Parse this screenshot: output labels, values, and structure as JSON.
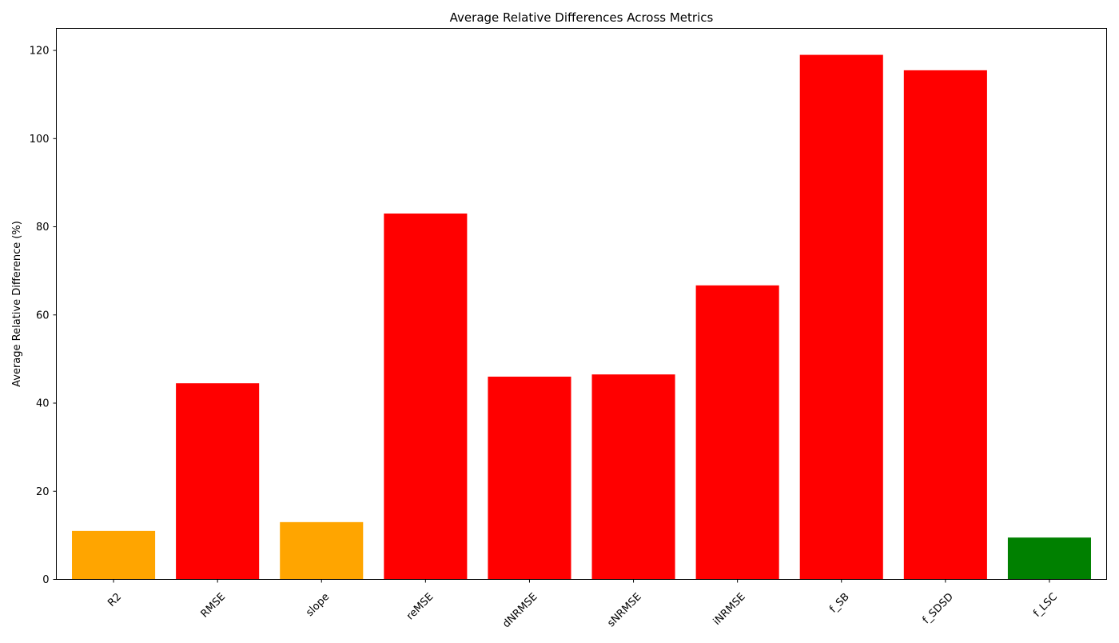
{
  "chart_data": {
    "type": "bar",
    "title": "Average Relative Differences Across Metrics",
    "xlabel": "",
    "ylabel": "Average Relative Difference (%)",
    "ylim": [
      0,
      125
    ],
    "yticks": [
      0,
      20,
      40,
      60,
      80,
      100,
      120
    ],
    "grid": false,
    "categories": [
      "R2",
      "RMSE",
      "slope",
      "reMSE",
      "dNRMSE",
      "sNRMSE",
      "iNRMSE",
      "f_SB",
      "f_SDSD",
      "f_LSC"
    ],
    "values": [
      11.0,
      44.5,
      13.0,
      83.0,
      46.0,
      46.5,
      66.7,
      119.0,
      115.5,
      9.5
    ],
    "colors": [
      "#ffa500",
      "#ff0000",
      "#ffa500",
      "#ff0000",
      "#ff0000",
      "#ff0000",
      "#ff0000",
      "#ff0000",
      "#ff0000",
      "#008000"
    ]
  }
}
